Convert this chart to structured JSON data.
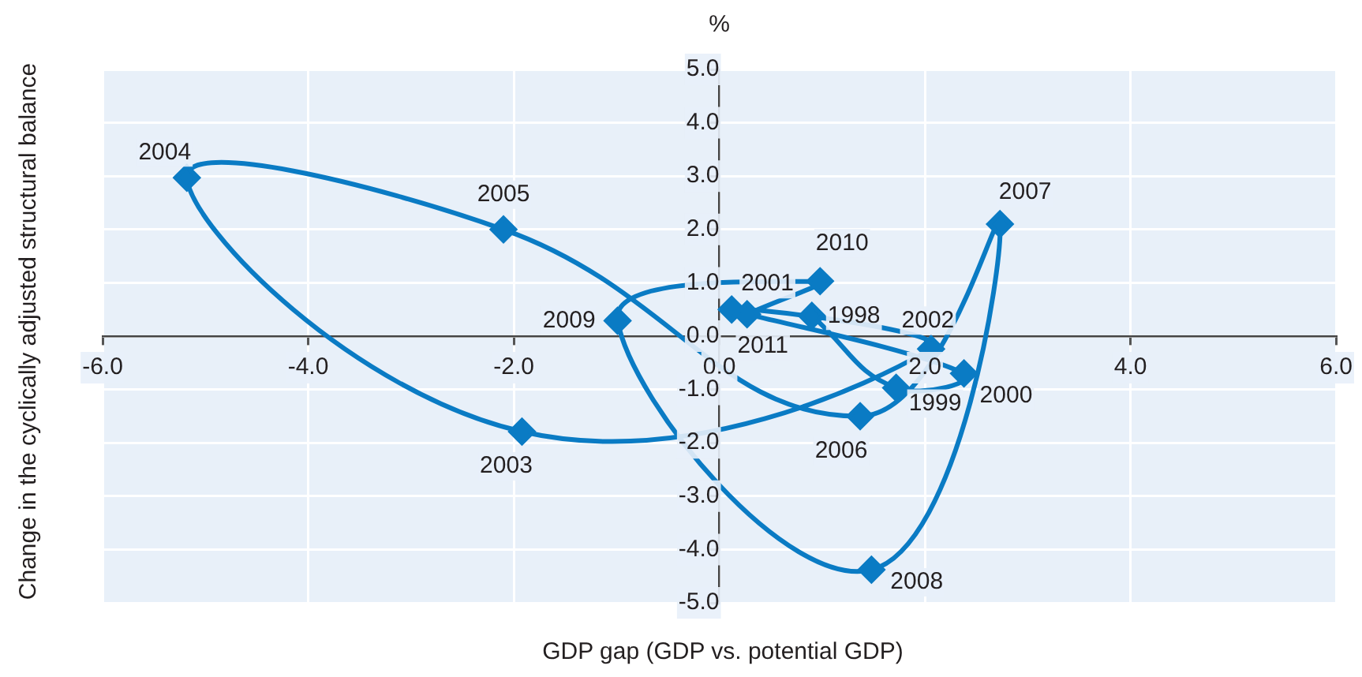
{
  "chart_data": {
    "type": "line",
    "xlabel": "GDP gap (GDP vs. potential GDP)",
    "ylabel": "Change in the cyclically adjusted structural balance",
    "x": [
      0.9,
      1.72,
      2.38,
      0.12,
      2.06,
      -1.92,
      -5.18,
      -2.1,
      1.37,
      2.73,
      1.48,
      -0.99,
      0.98,
      0.27
    ],
    "series": [
      {
        "color": "#0a7bc4",
        "values": [
          0.38,
          -0.97,
          -0.7,
          0.5,
          -0.24,
          -1.79,
          2.97,
          2.0,
          -1.5,
          2.1,
          -4.38,
          0.29,
          1.03,
          0.41
        ]
      }
    ],
    "xlim": [
      -6,
      6
    ],
    "xticks": [
      {
        "value": -6,
        "label": "-6.0"
      },
      {
        "value": -4,
        "label": "-4.0"
      },
      {
        "value": -2,
        "label": "-2.0"
      },
      {
        "value": 0,
        "label": "0.0"
      },
      {
        "value": 2,
        "label": "2.0"
      },
      {
        "value": 4,
        "label": "4.0"
      },
      {
        "value": 6,
        "label": "6.0"
      }
    ],
    "ylim": [
      -5,
      5
    ],
    "yticks": [
      {
        "value": -5,
        "label": "-5.0"
      },
      {
        "value": -4,
        "label": "-4.0"
      },
      {
        "value": -3,
        "label": "-3.0"
      },
      {
        "value": -2,
        "label": "-2.0"
      },
      {
        "value": -1,
        "label": "-1.0"
      },
      {
        "value": 0,
        "label": "0.0"
      },
      {
        "value": 1,
        "label": "1.0"
      },
      {
        "value": 2,
        "label": "2.0"
      },
      {
        "value": 3,
        "label": "3.0"
      },
      {
        "value": 4,
        "label": "4.0"
      },
      {
        "value": 5,
        "label": "5.0"
      }
    ],
    "grid": true,
    "marker": "diamond",
    "line_style": "solid",
    "annotations": [
      "%",
      {
        "text": "1998",
        "x": 0.9,
        "y": 0.38
      },
      {
        "text": "1999",
        "x": 1.72,
        "y": -0.97
      },
      {
        "text": "2000",
        "x": 2.38,
        "y": -0.7
      },
      {
        "text": "2001",
        "x": 0.12,
        "y": 0.5
      },
      {
        "text": "2002",
        "x": 2.06,
        "y": -0.24
      },
      {
        "text": "2003",
        "x": -1.92,
        "y": -1.79
      },
      {
        "text": "2004",
        "x": -5.18,
        "y": 2.97
      },
      {
        "text": "2005",
        "x": -2.1,
        "y": 2.0
      },
      {
        "text": "2006",
        "x": 1.37,
        "y": -1.5
      },
      {
        "text": "2007",
        "x": 2.73,
        "y": 2.1
      },
      {
        "text": "2008",
        "x": 1.48,
        "y": -4.38
      },
      {
        "text": "2009",
        "x": -0.99,
        "y": 0.29
      },
      {
        "text": "2010",
        "x": 0.98,
        "y": 1.03
      },
      {
        "text": "2011",
        "x": 0.27,
        "y": 0.41
      }
    ]
  }
}
